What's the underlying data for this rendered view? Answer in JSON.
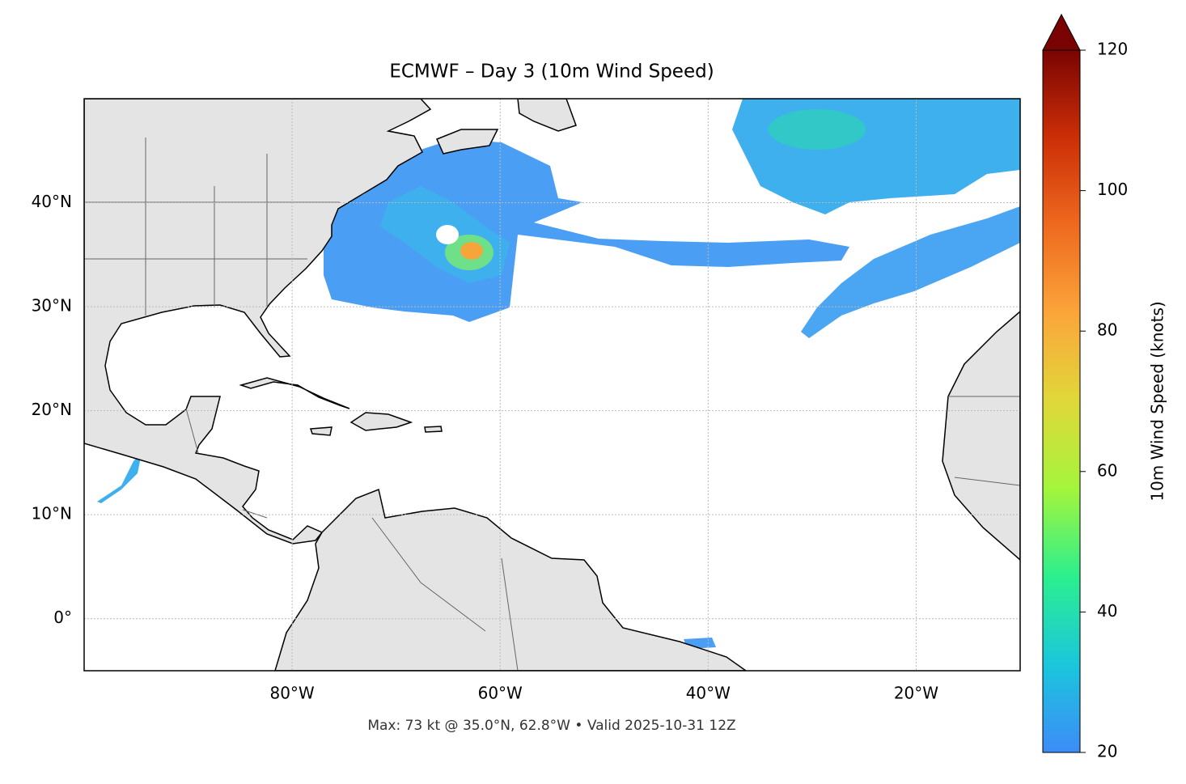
{
  "chart_data": {
    "type": "map",
    "title": "ECMWF – Day 3 (10m Wind Speed)",
    "footer": "Max: 73 kt @ 35.0°N, 62.8°W • Valid 2025-10-31 12Z",
    "xlim": [
      -100,
      -10
    ],
    "ylim": [
      -5,
      50
    ],
    "xticks": [
      {
        "value": -80,
        "label": "80°W"
      },
      {
        "value": -60,
        "label": "60°W"
      },
      {
        "value": -40,
        "label": "40°W"
      },
      {
        "value": -20,
        "label": "20°W"
      }
    ],
    "yticks": [
      {
        "value": 0,
        "label": "0°"
      },
      {
        "value": 10,
        "label": "10°N"
      },
      {
        "value": 20,
        "label": "20°N"
      },
      {
        "value": 30,
        "label": "30°N"
      },
      {
        "value": 40,
        "label": "40°N"
      }
    ],
    "grid": true,
    "colorbar": {
      "label": "10m Wind Speed (knots)",
      "lim": [
        20,
        120
      ],
      "ticks": [
        20,
        40,
        60,
        80,
        100,
        120
      ],
      "colors": [
        "#3c8cf7",
        "#1bc6dc",
        "#2bef8e",
        "#a4f53c",
        "#e0d83a",
        "#fba53a",
        "#ee6a1f",
        "#cc2f07",
        "#7a0403"
      ]
    }
  }
}
